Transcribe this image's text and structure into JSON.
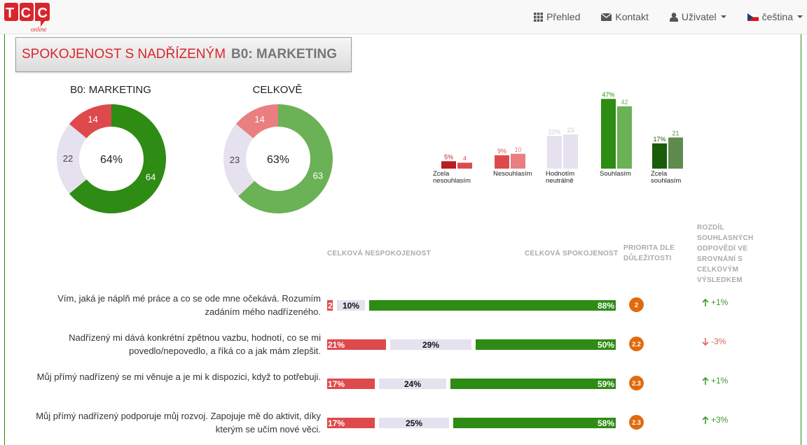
{
  "nav": {
    "logo_text": "TCC",
    "logo_sub": "online",
    "items": [
      {
        "label": "Přehled",
        "icon": "grid-icon"
      },
      {
        "label": "Kontakt",
        "icon": "envelope-icon"
      },
      {
        "label": "Uživatel",
        "icon": "user-icon"
      },
      {
        "label": "čeština",
        "icon": "czech-flag-icon"
      }
    ]
  },
  "title": {
    "main": "SPOKOJENOST S NADŘÍZENÝM",
    "dept": "B0: MARKETING"
  },
  "donuts": [
    {
      "label": "B0: MARKETING",
      "center": "64%",
      "segments": [
        64,
        22,
        14
      ],
      "labels": [
        "64",
        "22",
        "14"
      ],
      "colors": [
        "#2e8b14",
        "#e5e1ee",
        "#de4a4c"
      ]
    },
    {
      "label": "CELKOVĚ",
      "center": "63%",
      "segments": [
        63,
        23,
        14
      ],
      "labels": [
        "63",
        "23",
        "14"
      ],
      "colors": [
        "#6bb155",
        "#e5e1ee",
        "#e97f80"
      ]
    }
  ],
  "dist": {
    "groups": [
      {
        "label": "Zcela nesouhlasím",
        "dept_label": "5%",
        "total_label": "4",
        "dept": 5,
        "total": 4,
        "dept_color": "#b81e20",
        "total_color": "#de4a4c"
      },
      {
        "label": "Nesouhlasím",
        "dept_label": "9%",
        "total_label": "10",
        "dept": 9,
        "total": 10,
        "dept_color": "#de4a4c",
        "total_color": "#e97f80"
      },
      {
        "label": "Hodnotím neutrálně",
        "dept_label": "22%",
        "total_label": "23",
        "dept": 22,
        "total": 23,
        "dept_color": "#e5e1ee",
        "total_color": "#e5e1ee"
      },
      {
        "label": "Souhlasím",
        "dept_label": "47%",
        "total_label": "42",
        "dept": 47,
        "total": 42,
        "dept_color": "#2e8b14",
        "total_color": "#6bb155"
      },
      {
        "label": "Zcela souhlasím",
        "dept_label": "17%",
        "total_label": "21",
        "dept": 17,
        "total": 21,
        "dept_color": "#1a5c0a",
        "total_color": "#5e8c4e"
      }
    ]
  },
  "headers": {
    "dissatisfaction": "CELKOVÁ NESPOKOJENOST",
    "satisfaction": "CELKOVÁ SPOKOJENOST",
    "priority": "PRIORITA DLE DŮLEŽITOSTI",
    "difference": "ROZDÍL SOUHLASNÝCH ODPOVĚDÍ VE SROVNÁNÍ S CELKOVÝM VÝSLEDKEM"
  },
  "questions": [
    {
      "text": "Vím, jaká je náplň mé práce a co se ode mne očekává. Rozumím zadáním mého nadřízeného.",
      "neg": 2,
      "neg_label": "2",
      "neu": 10,
      "neu_label": "10%",
      "pos": 88,
      "pos_label": "88%",
      "priority": "2",
      "diff": "+1%",
      "dir": "up"
    },
    {
      "text": "Nadřízený mi dává konkrétní zpětnou vazbu, hodnotí, co se mi povedlo/nepovedlo, a říká co a jak mám zlepšit.",
      "neg": 21,
      "neg_label": "21%",
      "neu": 29,
      "neu_label": "29%",
      "pos": 50,
      "pos_label": "50%",
      "priority": "2.2",
      "diff": "-3%",
      "dir": "down"
    },
    {
      "text": "Můj přímý nadřízený se mi věnuje a je mi k dispozici, když to potřebuji.",
      "neg": 17,
      "neg_label": "17%",
      "neu": 24,
      "neu_label": "24%",
      "pos": 59,
      "pos_label": "59%",
      "priority": "2.3",
      "diff": "+1%",
      "dir": "up"
    },
    {
      "text": "Můj přímý nadřízený podporuje můj rozvoj. Zapojuje mě do aktivit, díky kterým se učím nové věci.",
      "neg": 17,
      "neg_label": "17%",
      "neu": 25,
      "neu_label": "25%",
      "pos": 58,
      "pos_label": "58%",
      "priority": "2.3",
      "diff": "+3%",
      "dir": "up"
    }
  ],
  "colors": {
    "neg": "#de4a4c",
    "neu": "#e5e1ee",
    "pos": "#2e8b14",
    "up": "#3a9b2a",
    "down": "#e06060"
  }
}
